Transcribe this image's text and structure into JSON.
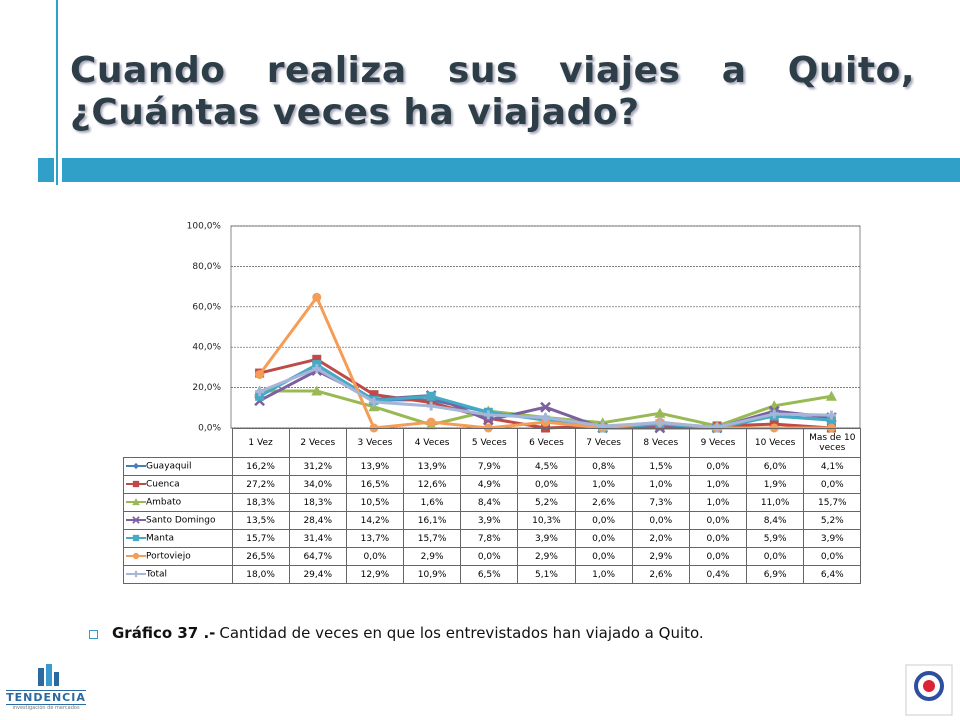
{
  "slide_title": "Cuando realiza sus viajes a Quito, ¿Cuántas veces ha viajado?",
  "caption": {
    "label": "Gráfico 37 .-",
    "text": "Cantidad de  veces en que los entrevistados han viajado a Quito."
  },
  "logo": {
    "name": "TENDENCIA",
    "tagline": "investigación de mercados"
  },
  "chart_data": {
    "type": "line",
    "categories": [
      "1 Vez",
      "2 Veces",
      "3 Veces",
      "4 Veces",
      "5 Veces",
      "6 Veces",
      "7 Veces",
      "8 Veces",
      "9 Veces",
      "10 Veces",
      "Mas de 10 veces"
    ],
    "ylim": [
      0,
      100
    ],
    "yticks": [
      {
        "value": 0,
        "label": "0,0%"
      },
      {
        "value": 20,
        "label": "20,0%"
      },
      {
        "value": 40,
        "label": "40,0%"
      },
      {
        "value": 60,
        "label": "60,0%"
      },
      {
        "value": 80,
        "label": "80,0%"
      },
      {
        "value": 100,
        "label": "100,0%"
      }
    ],
    "grid": true,
    "series": [
      {
        "name": "Guayaquil",
        "color": "#4a7ebb",
        "marker": "diamond",
        "values": [
          16.2,
          31.2,
          13.9,
          13.9,
          7.9,
          4.5,
          0.8,
          1.5,
          0.0,
          6.0,
          4.1
        ],
        "value_labels": [
          "16,2%",
          "31,2%",
          "13,9%",
          "13,9%",
          "7,9%",
          "4,5%",
          "0,8%",
          "1,5%",
          "0,0%",
          "6,0%",
          "4,1%"
        ]
      },
      {
        "name": "Cuenca",
        "color": "#be4b48",
        "marker": "square",
        "values": [
          27.2,
          34.0,
          16.5,
          12.6,
          4.9,
          0.0,
          1.0,
          1.0,
          1.0,
          1.9,
          0.0
        ],
        "value_labels": [
          "27,2%",
          "34,0%",
          "16,5%",
          "12,6%",
          "4,9%",
          "0,0%",
          "1,0%",
          "1,0%",
          "1,0%",
          "1,9%",
          "0,0%"
        ]
      },
      {
        "name": "Ambato",
        "color": "#98b954",
        "marker": "triangle",
        "values": [
          18.3,
          18.3,
          10.5,
          1.6,
          8.4,
          5.2,
          2.6,
          7.3,
          1.0,
          11.0,
          15.7
        ],
        "value_labels": [
          "18,3%",
          "18,3%",
          "10,5%",
          "1,6%",
          "8,4%",
          "5,2%",
          "2,6%",
          "7,3%",
          "1,0%",
          "11,0%",
          "15,7%"
        ]
      },
      {
        "name": "Santo Domingo",
        "color": "#7d60a0",
        "marker": "x",
        "values": [
          13.5,
          28.4,
          14.2,
          16.1,
          3.9,
          10.3,
          0.0,
          0.0,
          0.0,
          8.4,
          5.2
        ],
        "value_labels": [
          "13,5%",
          "28,4%",
          "14,2%",
          "16,1%",
          "3,9%",
          "10,3%",
          "0,0%",
          "0,0%",
          "0,0%",
          "8,4%",
          "5,2%"
        ]
      },
      {
        "name": "Manta",
        "color": "#46aac5",
        "marker": "square",
        "values": [
          15.7,
          31.4,
          13.7,
          15.7,
          7.8,
          3.9,
          0.0,
          2.0,
          0.0,
          5.9,
          3.9
        ],
        "value_labels": [
          "15,7%",
          "31,4%",
          "13,7%",
          "15,7%",
          "7,8%",
          "3,9%",
          "0,0%",
          "2,0%",
          "0,0%",
          "5,9%",
          "3,9%"
        ]
      },
      {
        "name": "Portoviejo",
        "color": "#f59d56",
        "marker": "circle",
        "values": [
          26.5,
          64.7,
          0.0,
          2.9,
          0.0,
          2.9,
          0.0,
          2.9,
          0.0,
          0.0,
          0.0
        ],
        "value_labels": [
          "26,5%",
          "64,7%",
          "0,0%",
          "2,9%",
          "0,0%",
          "2,9%",
          "0,0%",
          "2,9%",
          "0,0%",
          "0,0%",
          "0,0%"
        ]
      },
      {
        "name": "Total",
        "color": "#a5b6d8",
        "marker": "plus",
        "values": [
          18.0,
          29.4,
          12.9,
          10.9,
          6.5,
          5.1,
          1.0,
          2.6,
          0.4,
          6.9,
          6.4
        ],
        "value_labels": [
          "18,0%",
          "29,4%",
          "12,9%",
          "10,9%",
          "6,5%",
          "5,1%",
          "1,0%",
          "2,6%",
          "0,4%",
          "6,9%",
          "6,4%"
        ]
      }
    ]
  }
}
